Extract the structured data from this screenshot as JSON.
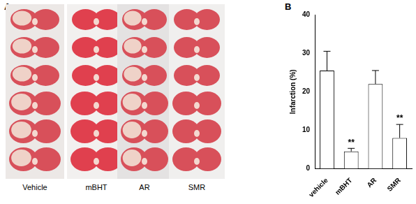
{
  "figure": {
    "panel_labels": [
      "A",
      "B"
    ],
    "photo_columns": [
      "Vehicle",
      "mBHT",
      "AR",
      "SMR"
    ]
  },
  "chart_data": {
    "type": "bar",
    "categories": [
      "vehicle",
      "mBHT",
      "AR",
      "SMR"
    ],
    "values": [
      25.5,
      4.5,
      22,
      8
    ],
    "errors": [
      5,
      0.8,
      3.5,
      3.5
    ],
    "annotations": [
      {
        "category": "mBHT",
        "text": "**"
      },
      {
        "category": "SMR",
        "text": "**"
      }
    ],
    "y_label": "Infarction (%)",
    "color": "#ffffff",
    "ylim": [
      0,
      40
    ],
    "yticks": [
      0,
      10,
      20,
      30,
      40
    ],
    "grid": false
  }
}
